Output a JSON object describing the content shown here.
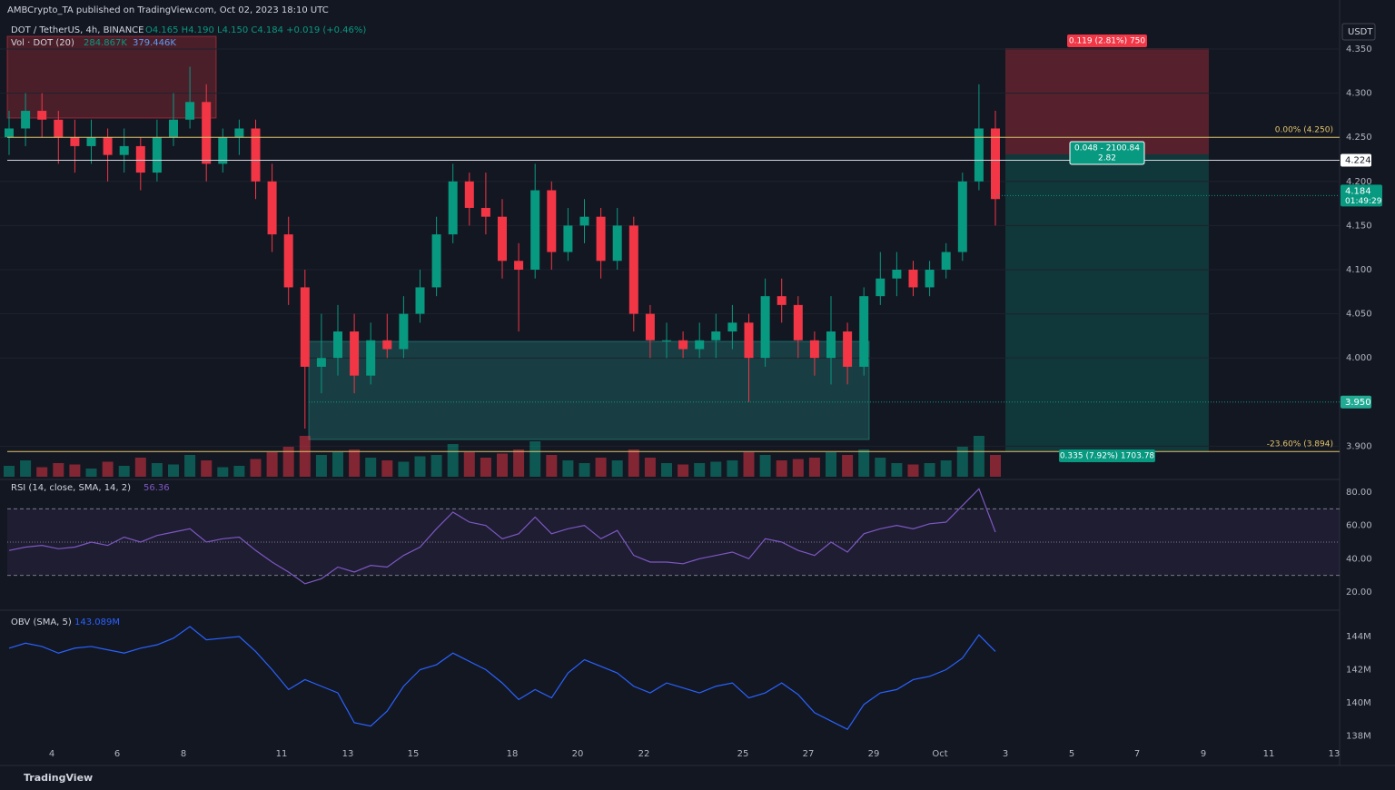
{
  "header": {
    "published": "AMBCrypto_TA published on TradingView.com, Oct 02, 2023 18:10 UTC",
    "symbol": "DOT / TetherUS, 4h, BINANCE",
    "ohlc": "O4.165 H4.190 L4.150 C4.184 +0.019 (+0.46%)",
    "vol_name": "Vol · DOT (20)",
    "vol_value": "284.867K",
    "vol_sma": "379.446K",
    "rsi_name": "RSI (14, close, SMA, 14, 2)",
    "rsi_value": "56.36",
    "obv_name": "OBV (SMA, 5)",
    "obv_value": "143.089M",
    "currency": "USDT",
    "footer": "TradingView"
  },
  "price_axis": {
    "ylim": [
      3.87,
      4.36
    ],
    "yticks": [
      {
        "value": 4.35,
        "label": "4.350"
      },
      {
        "value": 4.3,
        "label": "4.300"
      },
      {
        "value": 4.25,
        "label": "4.250"
      },
      {
        "value": 4.2,
        "label": "4.200"
      },
      {
        "value": 4.15,
        "label": "4.150"
      },
      {
        "value": 4.1,
        "label": "4.100"
      },
      {
        "value": 4.05,
        "label": "4.050"
      },
      {
        "value": 4.0,
        "label": "4.000"
      },
      {
        "value": 3.9,
        "label": "3.900"
      }
    ]
  },
  "levels": {
    "fib0": {
      "value": 4.25,
      "label": "0.00% (4.250)"
    },
    "fib236": {
      "value": 3.894,
      "label": "-23.60% (3.894)"
    },
    "line": {
      "value": 4.224,
      "label": "4.224"
    },
    "support": {
      "value": 3.95,
      "label": "3.950"
    },
    "last": {
      "value": 4.184,
      "label": "4.184",
      "timer": "01:49:29"
    }
  },
  "position": {
    "target": "0.119 (2.81%) 750",
    "entry": "0.048 - 2100.84",
    "ratio": "2.82",
    "stop": "0.335 (7.92%) 1703.78"
  },
  "candles": [
    [
      4.25,
      4.28,
      4.23,
      4.26
    ],
    [
      4.26,
      4.3,
      4.24,
      4.28
    ],
    [
      4.28,
      4.3,
      4.25,
      4.27
    ],
    [
      4.27,
      4.28,
      4.22,
      4.25
    ],
    [
      4.25,
      4.27,
      4.21,
      4.24
    ],
    [
      4.24,
      4.27,
      4.22,
      4.25
    ],
    [
      4.25,
      4.26,
      4.2,
      4.23
    ],
    [
      4.23,
      4.26,
      4.21,
      4.24
    ],
    [
      4.24,
      4.25,
      4.19,
      4.21
    ],
    [
      4.21,
      4.27,
      4.2,
      4.25
    ],
    [
      4.25,
      4.3,
      4.24,
      4.27
    ],
    [
      4.27,
      4.33,
      4.26,
      4.29
    ],
    [
      4.29,
      4.31,
      4.2,
      4.22
    ],
    [
      4.22,
      4.26,
      4.21,
      4.25
    ],
    [
      4.25,
      4.27,
      4.23,
      4.26
    ],
    [
      4.26,
      4.27,
      4.18,
      4.2
    ],
    [
      4.2,
      4.22,
      4.12,
      4.14
    ],
    [
      4.14,
      4.16,
      4.06,
      4.08
    ],
    [
      4.08,
      4.1,
      3.92,
      3.99
    ],
    [
      3.99,
      4.05,
      3.96,
      4.0
    ],
    [
      4.0,
      4.06,
      3.98,
      4.03
    ],
    [
      4.03,
      4.05,
      3.96,
      3.98
    ],
    [
      3.98,
      4.04,
      3.97,
      4.02
    ],
    [
      4.02,
      4.05,
      4.0,
      4.01
    ],
    [
      4.01,
      4.07,
      4.0,
      4.05
    ],
    [
      4.05,
      4.1,
      4.04,
      4.08
    ],
    [
      4.08,
      4.16,
      4.07,
      4.14
    ],
    [
      4.14,
      4.22,
      4.13,
      4.2
    ],
    [
      4.2,
      4.21,
      4.15,
      4.17
    ],
    [
      4.17,
      4.21,
      4.14,
      4.16
    ],
    [
      4.16,
      4.18,
      4.09,
      4.11
    ],
    [
      4.11,
      4.13,
      4.03,
      4.1
    ],
    [
      4.1,
      4.22,
      4.09,
      4.19
    ],
    [
      4.19,
      4.2,
      4.1,
      4.12
    ],
    [
      4.12,
      4.17,
      4.11,
      4.15
    ],
    [
      4.15,
      4.18,
      4.13,
      4.16
    ],
    [
      4.16,
      4.17,
      4.09,
      4.11
    ],
    [
      4.11,
      4.17,
      4.1,
      4.15
    ],
    [
      4.15,
      4.16,
      4.03,
      4.05
    ],
    [
      4.05,
      4.06,
      4.0,
      4.02
    ],
    [
      4.02,
      4.04,
      4.0,
      4.02
    ],
    [
      4.02,
      4.03,
      4.0,
      4.01
    ],
    [
      4.01,
      4.04,
      4.0,
      4.02
    ],
    [
      4.02,
      4.05,
      4.0,
      4.03
    ],
    [
      4.03,
      4.06,
      4.01,
      4.04
    ],
    [
      4.04,
      4.05,
      3.95,
      4.0
    ],
    [
      4.0,
      4.09,
      3.99,
      4.07
    ],
    [
      4.07,
      4.09,
      4.04,
      4.06
    ],
    [
      4.06,
      4.07,
      4.0,
      4.02
    ],
    [
      4.02,
      4.03,
      3.98,
      4.0
    ],
    [
      4.0,
      4.07,
      3.97,
      4.03
    ],
    [
      4.03,
      4.04,
      3.97,
      3.99
    ],
    [
      3.99,
      4.08,
      3.98,
      4.07
    ],
    [
      4.07,
      4.12,
      4.06,
      4.09
    ],
    [
      4.09,
      4.12,
      4.07,
      4.1
    ],
    [
      4.1,
      4.11,
      4.07,
      4.08
    ],
    [
      4.08,
      4.11,
      4.07,
      4.1
    ],
    [
      4.1,
      4.13,
      4.09,
      4.12
    ],
    [
      4.12,
      4.21,
      4.11,
      4.2
    ],
    [
      4.2,
      4.31,
      4.19,
      4.26
    ],
    [
      4.26,
      4.28,
      4.15,
      4.18
    ]
  ],
  "volume": [
    400,
    600,
    350,
    500,
    450,
    300,
    550,
    400,
    700,
    500,
    450,
    800,
    600,
    350,
    400,
    650,
    900,
    1100,
    1500,
    800,
    900,
    1000,
    700,
    600,
    550,
    750,
    800,
    1200,
    900,
    700,
    850,
    1000,
    1300,
    800,
    600,
    500,
    700,
    600,
    1000,
    700,
    500,
    450,
    500,
    550,
    600,
    900,
    800,
    600,
    650,
    700,
    900,
    800,
    1000,
    700,
    500,
    450,
    500,
    600,
    1100,
    1500,
    800
  ],
  "rsi": {
    "values": [
      45,
      47,
      48,
      46,
      47,
      50,
      48,
      53,
      50,
      54,
      56,
      58,
      50,
      52,
      53,
      45,
      38,
      32,
      25,
      28,
      35,
      32,
      36,
      35,
      42,
      47,
      58,
      68,
      62,
      60,
      52,
      55,
      65,
      55,
      58,
      60,
      52,
      57,
      42,
      38,
      38,
      37,
      40,
      42,
      44,
      40,
      52,
      50,
      45,
      42,
      50,
      44,
      55,
      58,
      60,
      58,
      61,
      62,
      72,
      82,
      56
    ],
    "ylim": [
      15,
      85
    ],
    "yticks": [
      {
        "value": 80,
        "label": "80.00"
      },
      {
        "value": 60,
        "label": "60.00"
      },
      {
        "value": 40,
        "label": "40.00"
      },
      {
        "value": 20,
        "label": "20.00"
      }
    ],
    "bands": [
      70,
      50,
      30
    ]
  },
  "obv": {
    "values": [
      143.3,
      143.6,
      143.4,
      143.0,
      143.3,
      143.4,
      143.2,
      143.0,
      143.3,
      143.5,
      143.9,
      144.6,
      143.8,
      143.9,
      144.0,
      143.1,
      142.0,
      140.8,
      141.4,
      141.0,
      140.6,
      138.8,
      138.6,
      139.5,
      141.0,
      142.0,
      142.3,
      143.0,
      142.5,
      142.0,
      141.2,
      140.2,
      140.8,
      140.3,
      141.8,
      142.6,
      142.2,
      141.8,
      141.0,
      140.6,
      141.2,
      140.9,
      140.6,
      141.0,
      141.2,
      140.3,
      140.6,
      141.2,
      140.5,
      139.4,
      138.9,
      138.4,
      139.9,
      140.6,
      140.8,
      141.4,
      141.6,
      142.0,
      142.7,
      144.1,
      143.1
    ],
    "yticks": [
      {
        "value": 144,
        "label": "144M"
      },
      {
        "value": 142,
        "label": "142M"
      },
      {
        "value": 140,
        "label": "140M"
      },
      {
        "value": 138,
        "label": "138M"
      }
    ]
  },
  "time_axis": [
    "4",
    "6",
    "8",
    "11",
    "13",
    "15",
    "18",
    "20",
    "22",
    "25",
    "27",
    "29",
    "Oct",
    "3",
    "5",
    "7",
    "9",
    "11",
    "13"
  ]
}
